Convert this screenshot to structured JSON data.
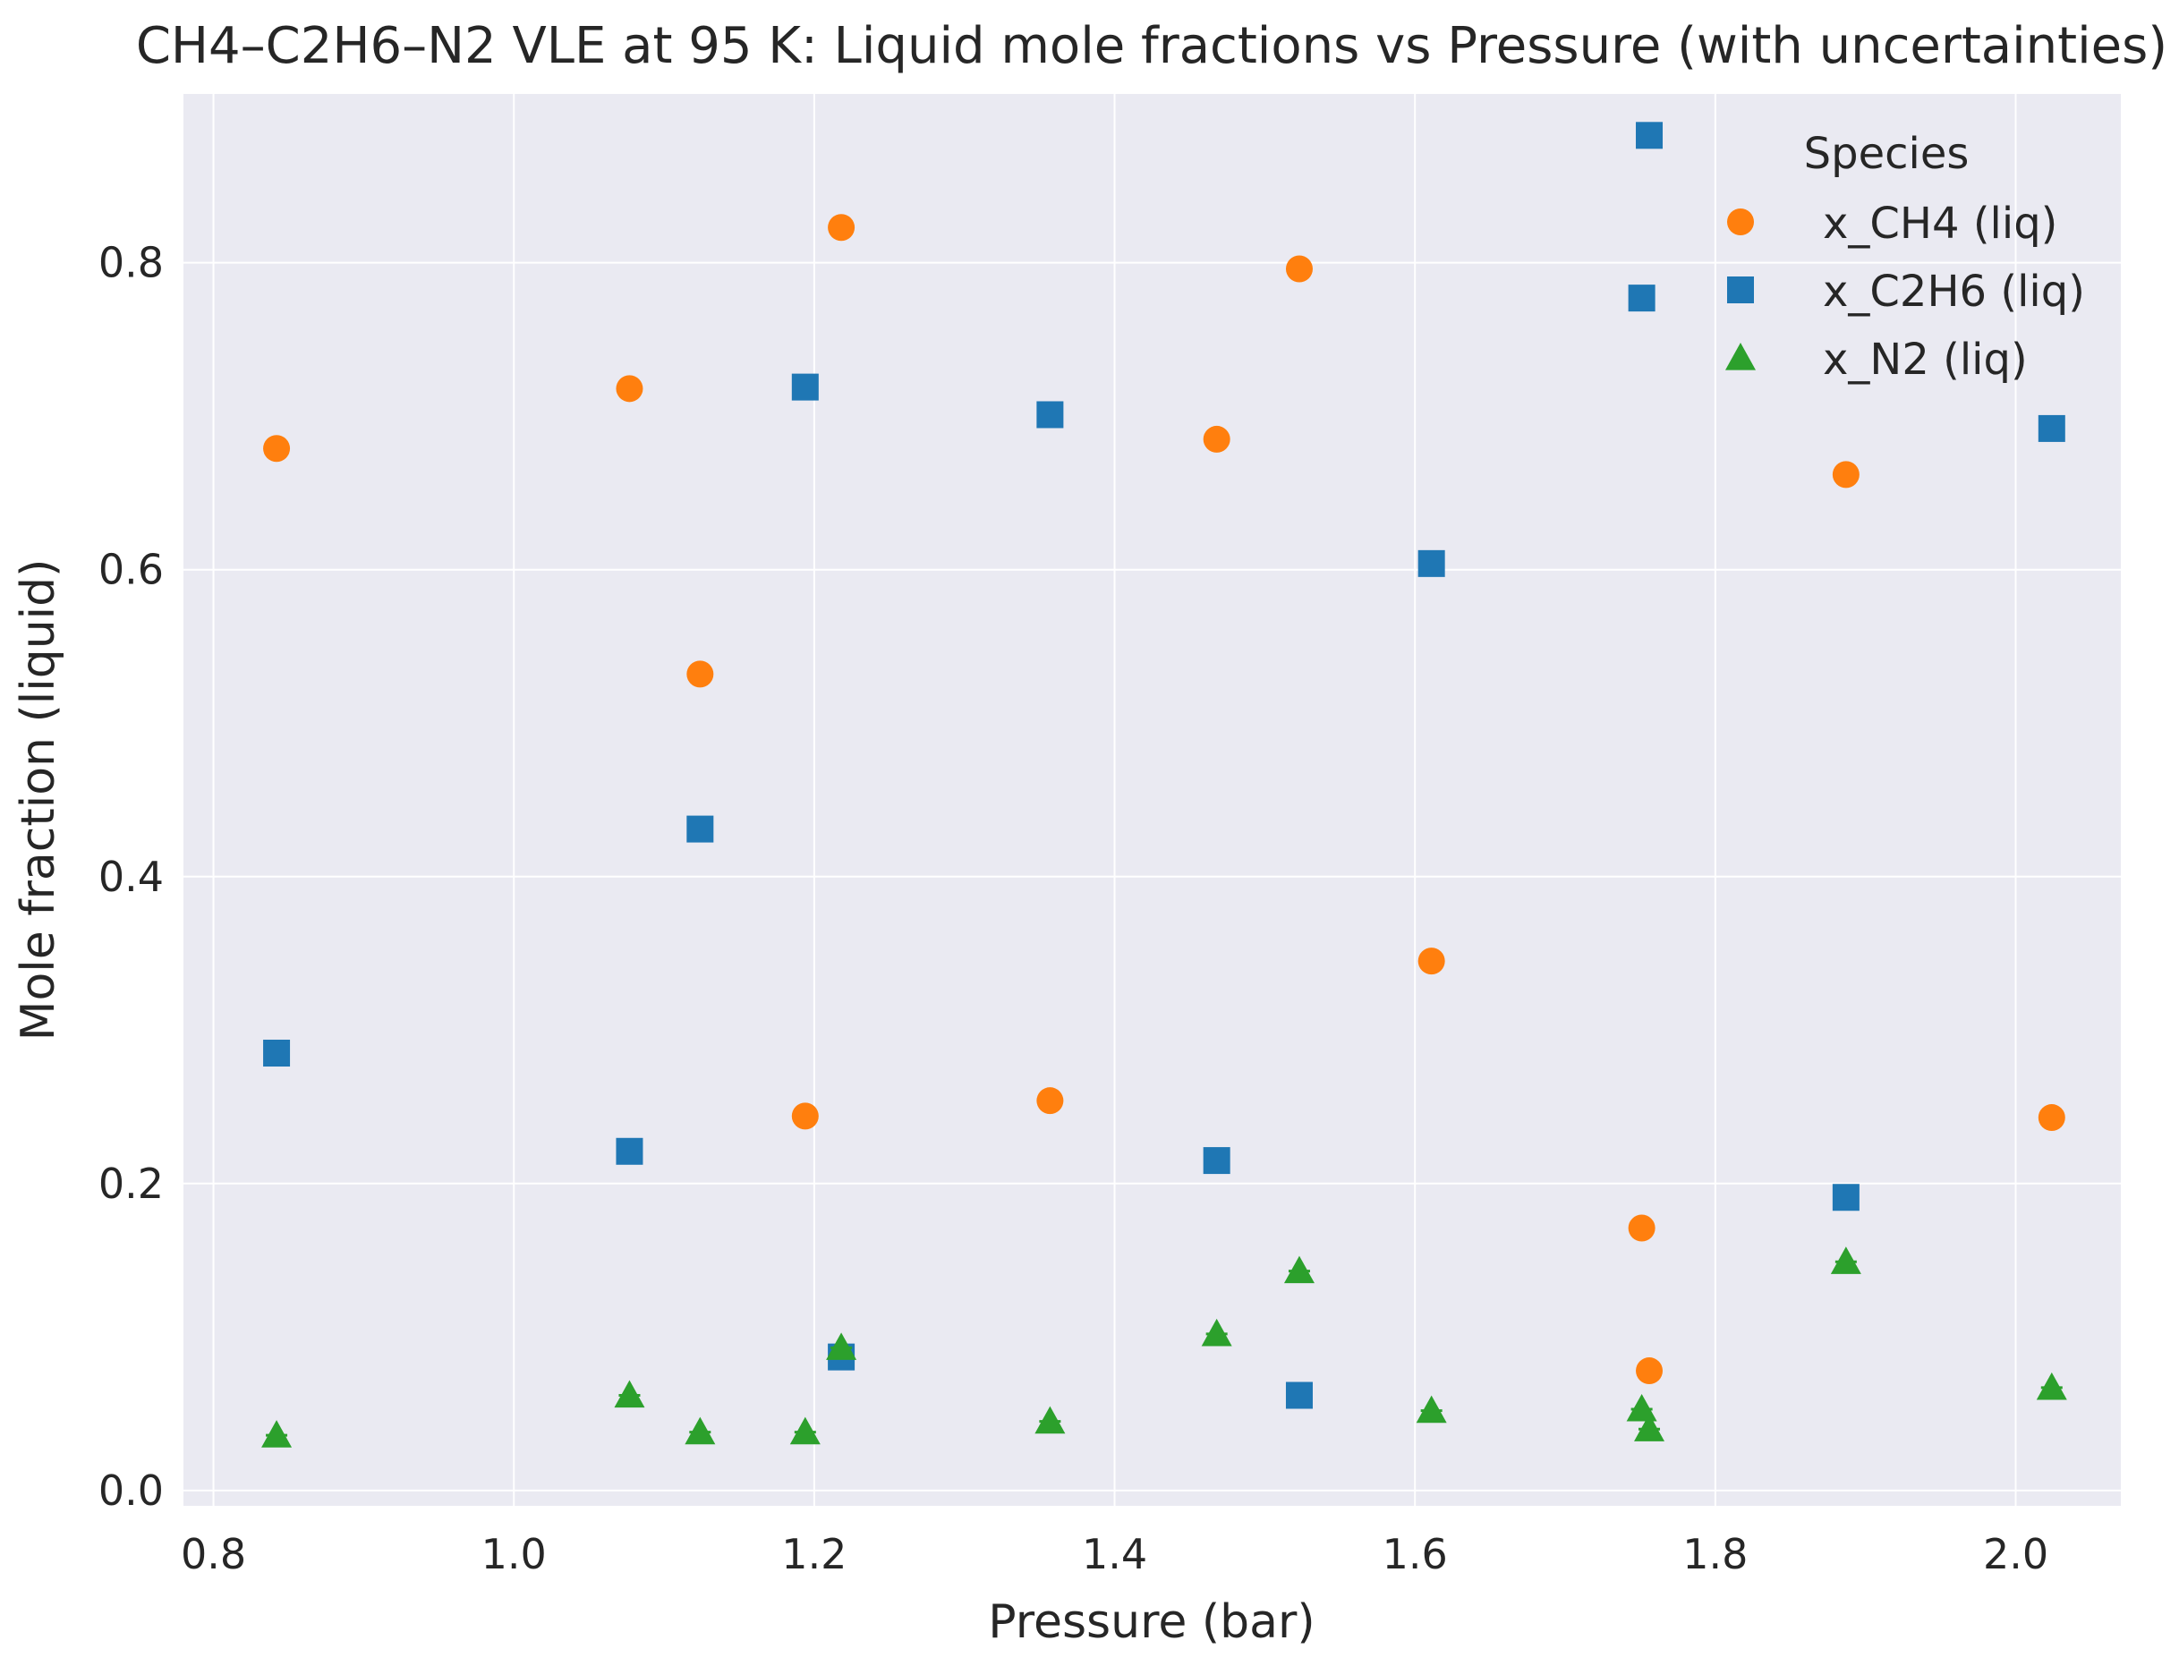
{
  "chart_data": {
    "type": "scatter",
    "title": "CH4–C2H6–N2 VLE at 95 K: Liquid mole fractions vs Pressure (with uncertainties)",
    "xlabel": "Pressure (bar)",
    "ylabel": "Mole fraction (liquid)",
    "xlim": [
      0.78,
      2.07
    ],
    "ylim": [
      -0.01,
      0.91
    ],
    "xticks": [
      0.8,
      1.0,
      1.2,
      1.4,
      1.6,
      1.8,
      2.0
    ],
    "xtick_labels": [
      "0.8",
      "1.0",
      "1.2",
      "1.4",
      "1.6",
      "1.8",
      "2.0"
    ],
    "yticks": [
      0.0,
      0.2,
      0.4,
      0.6,
      0.8
    ],
    "ytick_labels": [
      "0.0",
      "0.2",
      "0.4",
      "0.6",
      "0.8"
    ],
    "grid": true,
    "legend": {
      "title": "Species",
      "placement": "top-right"
    },
    "x": [
      0.842,
      1.077,
      1.124,
      1.194,
      1.218,
      1.357,
      1.468,
      1.523,
      1.611,
      1.751,
      1.756,
      1.887,
      2.024
    ],
    "series": [
      {
        "name": "x_CH4 (liq)",
        "marker": "circle",
        "color": "#ff7f0e",
        "values": [
          0.679,
          0.718,
          0.532,
          0.244,
          0.823,
          0.254,
          0.685,
          0.796,
          0.345,
          0.171,
          0.078,
          0.662,
          0.243
        ]
      },
      {
        "name": "x_C2H6 (liq)",
        "marker": "square",
        "color": "#1f77b4",
        "values": [
          0.285,
          0.221,
          0.431,
          0.719,
          0.087,
          0.701,
          0.215,
          0.062,
          0.604,
          0.777,
          0.883,
          0.191,
          0.692
        ]
      },
      {
        "name": "x_N2 (liq)",
        "marker": "triangle",
        "color": "#2ca02c",
        "values": [
          0.036,
          0.062,
          0.038,
          0.038,
          0.093,
          0.045,
          0.102,
          0.143,
          0.052,
          0.053,
          0.04,
          0.149,
          0.067
        ]
      }
    ]
  },
  "colors": {
    "plot_background": "#eaeaf2",
    "grid": "#ffffff",
    "text": "#262626"
  }
}
